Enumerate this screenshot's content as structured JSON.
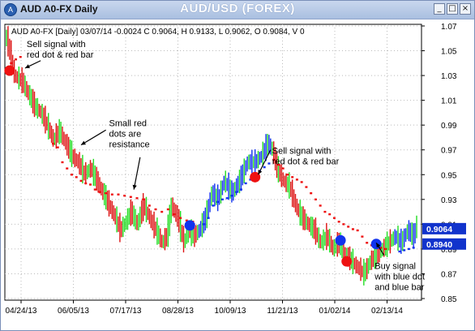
{
  "window": {
    "title": "AUD A0-FX Daily",
    "chart_title": "AUD/USD (FOREX)",
    "icon": "app-logo-icon",
    "controls": [
      {
        "name": "minimize-button",
        "glyph": "_"
      },
      {
        "name": "restore-button",
        "glyph": "□"
      },
      {
        "name": "close-button",
        "glyph": "×"
      }
    ]
  },
  "colors": {
    "up_bar": "#22dd22",
    "down_bar": "#dd1111",
    "blue_bar": "#1133ee",
    "resistance_dot": "#ee1111",
    "support_dot": "#1133ee",
    "price_tag": "#1133cc",
    "grid": "#bbbbbb"
  },
  "chart_data": {
    "type": "line",
    "header": "AUD A0-FX [Daily] 03/07/14  -0.0024 C 0.9064, H 0.9133, L 0.9062, O 0.9084, V 0",
    "x_tick_labels": [
      "04/24/13",
      "06/05/13",
      "07/17/13",
      "08/28/13",
      "10/09/13",
      "11/21/13",
      "01/02/14",
      "02/13/14"
    ],
    "y_tick_labels": [
      "1.07",
      "1.05",
      "1.03",
      "1.01",
      "0.99",
      "0.97",
      "0.95",
      "0.93",
      "0.91",
      "0.89",
      "0.87",
      "0.85"
    ],
    "ylim": [
      0.85,
      1.07
    ],
    "grid": true,
    "price_tags": [
      "0.9064",
      "0.8940"
    ],
    "price_tag_values": [
      0.9064,
      0.894
    ],
    "price_path": [
      [
        0,
        1.06
      ],
      [
        5,
        1.03
      ],
      [
        10,
        1.025
      ],
      [
        18,
        1.005
      ],
      [
        22,
        1.0
      ],
      [
        26,
        0.99
      ],
      [
        30,
        0.978
      ],
      [
        34,
        0.985
      ],
      [
        38,
        0.975
      ],
      [
        42,
        0.965
      ],
      [
        46,
        0.96
      ],
      [
        50,
        0.95
      ],
      [
        54,
        0.955
      ],
      [
        58,
        0.945
      ],
      [
        62,
        0.935
      ],
      [
        66,
        0.925
      ],
      [
        70,
        0.915
      ],
      [
        73,
        0.905
      ],
      [
        76,
        0.91
      ],
      [
        80,
        0.92
      ],
      [
        84,
        0.91
      ],
      [
        88,
        0.925
      ],
      [
        92,
        0.915
      ],
      [
        96,
        0.905
      ],
      [
        100,
        0.895
      ],
      [
        103,
        0.9
      ],
      [
        106,
        0.925
      ],
      [
        110,
        0.915
      ],
      [
        114,
        0.895
      ],
      [
        117,
        0.905
      ],
      [
        120,
        0.9
      ],
      [
        124,
        0.905
      ],
      [
        128,
        0.915
      ],
      [
        132,
        0.935
      ],
      [
        136,
        0.93
      ],
      [
        140,
        0.945
      ],
      [
        145,
        0.935
      ],
      [
        150,
        0.945
      ],
      [
        155,
        0.96
      ],
      [
        160,
        0.96
      ],
      [
        164,
        0.965
      ],
      [
        168,
        0.975
      ],
      [
        171,
        0.97
      ],
      [
        174,
        0.955
      ],
      [
        178,
        0.945
      ],
      [
        182,
        0.94
      ],
      [
        186,
        0.925
      ],
      [
        190,
        0.915
      ],
      [
        194,
        0.91
      ],
      [
        198,
        0.905
      ],
      [
        202,
        0.895
      ],
      [
        206,
        0.9
      ],
      [
        210,
        0.89
      ],
      [
        214,
        0.895
      ],
      [
        218,
        0.885
      ],
      [
        222,
        0.88
      ],
      [
        226,
        0.875
      ],
      [
        230,
        0.87
      ],
      [
        234,
        0.88
      ],
      [
        238,
        0.885
      ],
      [
        242,
        0.89
      ],
      [
        246,
        0.895
      ],
      [
        250,
        0.9
      ],
      [
        254,
        0.895
      ],
      [
        258,
        0.905
      ],
      [
        262,
        0.9
      ],
      [
        264,
        0.91
      ]
    ],
    "blue_ranges": [
      [
        124,
        171
      ],
      [
        250,
        264
      ]
    ],
    "resistance_dots": [
      [
        3,
        1.04
      ],
      [
        6,
        1.043
      ],
      [
        9,
        1.045
      ],
      [
        30,
        0.975
      ],
      [
        33,
        0.972
      ],
      [
        36,
        0.96
      ],
      [
        39,
        0.955
      ],
      [
        42,
        0.95
      ],
      [
        45,
        0.948
      ],
      [
        48,
        0.945
      ],
      [
        51,
        0.943
      ],
      [
        54,
        0.942
      ],
      [
        57,
        0.938
      ],
      [
        60,
        0.936
      ],
      [
        64,
        0.935
      ],
      [
        68,
        0.934
      ],
      [
        72,
        0.934
      ],
      [
        76,
        0.933
      ],
      [
        80,
        0.932
      ],
      [
        84,
        0.931
      ],
      [
        88,
        0.93
      ],
      [
        92,
        0.925
      ],
      [
        96,
        0.922
      ],
      [
        100,
        0.92
      ],
      [
        104,
        0.922
      ],
      [
        108,
        0.918
      ],
      [
        112,
        0.915
      ],
      [
        116,
        0.913
      ],
      [
        120,
        0.912
      ],
      [
        172,
        0.962
      ],
      [
        175,
        0.958
      ],
      [
        178,
        0.955
      ],
      [
        181,
        0.95
      ],
      [
        184,
        0.948
      ],
      [
        187,
        0.946
      ],
      [
        190,
        0.944
      ],
      [
        193,
        0.94
      ],
      [
        196,
        0.935
      ],
      [
        199,
        0.93
      ],
      [
        202,
        0.925
      ],
      [
        205,
        0.92
      ],
      [
        208,
        0.918
      ],
      [
        211,
        0.915
      ],
      [
        214,
        0.912
      ],
      [
        217,
        0.91
      ],
      [
        220,
        0.908
      ],
      [
        223,
        0.906
      ],
      [
        226,
        0.905
      ],
      [
        229,
        0.9
      ],
      [
        232,
        0.895
      ],
      [
        235,
        0.893
      ],
      [
        238,
        0.892
      ],
      [
        241,
        0.891
      ],
      [
        244,
        0.89
      ]
    ],
    "support_dots": [
      [
        127,
        0.91
      ],
      [
        130,
        0.915
      ],
      [
        133,
        0.925
      ],
      [
        136,
        0.928
      ],
      [
        139,
        0.93
      ],
      [
        142,
        0.931
      ],
      [
        145,
        0.933
      ],
      [
        148,
        0.936
      ],
      [
        151,
        0.938
      ],
      [
        154,
        0.943
      ],
      [
        157,
        0.946
      ],
      [
        160,
        0.95
      ],
      [
        163,
        0.953
      ],
      [
        166,
        0.956
      ],
      [
        169,
        0.959
      ],
      [
        253,
        0.888
      ],
      [
        256,
        0.889
      ],
      [
        259,
        0.89
      ],
      [
        262,
        0.891
      ]
    ],
    "signals": [
      {
        "type": "sell",
        "x": 2,
        "y": 1.034
      },
      {
        "type": "buy",
        "x": 118,
        "y": 0.909
      },
      {
        "type": "sell",
        "x": 160,
        "y": 0.948
      },
      {
        "type": "buy",
        "x": 215,
        "y": 0.897
      },
      {
        "type": "sell",
        "x": 219,
        "y": 0.88
      },
      {
        "type": "buy",
        "x": 238,
        "y": 0.894
      }
    ],
    "annotations": [
      {
        "id": "sell-1",
        "lines": [
          "Sell signal with",
          "red dot & red bar"
        ],
        "x": 13,
        "y": 1.053,
        "arrow": [
          [
            22,
            1.042
          ],
          [
            12,
            1.036
          ]
        ]
      },
      {
        "id": "resistance",
        "lines": [
          "Small red",
          "dots are",
          "resistance"
        ],
        "x": 66,
        "y": 0.989,
        "arrow": [
          [
            64,
            0.986
          ],
          [
            48,
            0.974
          ]
        ]
      },
      {
        "id": "resistance-2",
        "lines": [],
        "x": 0,
        "y": 0,
        "arrow": [
          [
            86,
            0.964
          ],
          [
            82,
            0.938
          ]
        ]
      },
      {
        "id": "sell-2",
        "lines": [
          "Sell signal with",
          "red dot & red bar"
        ],
        "x": 171,
        "y": 0.967,
        "arrow": [
          [
            170,
            0.97
          ],
          [
            162,
            0.95
          ]
        ]
      },
      {
        "id": "buy-1",
        "lines": [
          "Buy signal",
          "with blue dot",
          "and blue bar"
        ],
        "x": 237,
        "y": 0.874,
        "arrow": [
          [
            243,
            0.885
          ],
          [
            238,
            0.895
          ]
        ]
      }
    ]
  }
}
